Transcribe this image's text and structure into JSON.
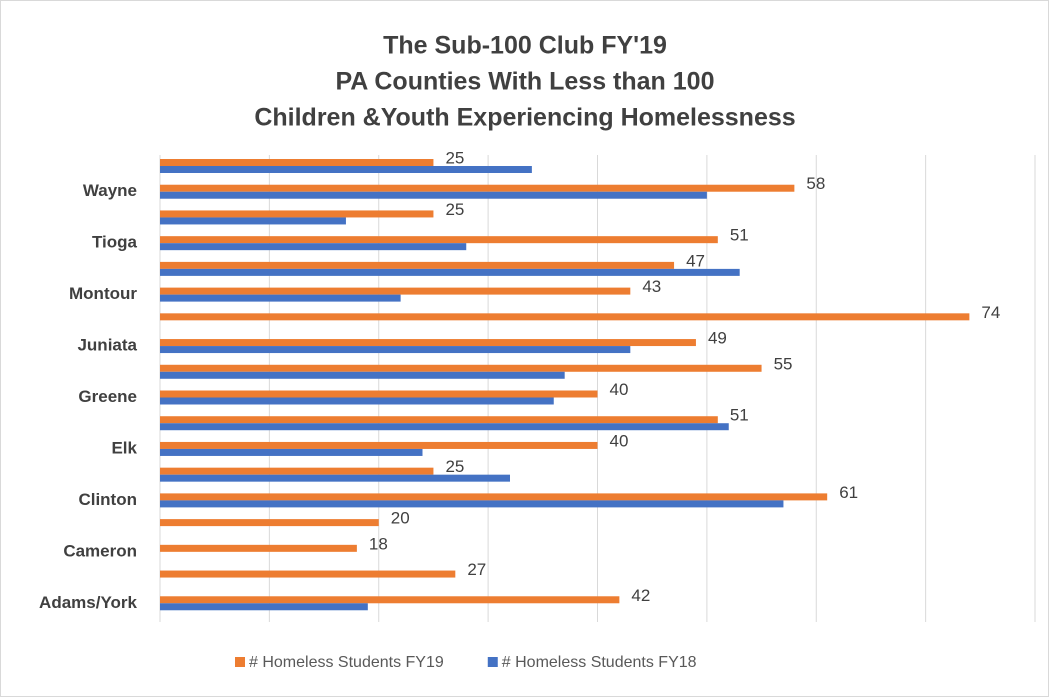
{
  "chart_data": {
    "type": "barh",
    "title": [
      "The Sub-100 Club FY'19",
      "PA Counties With Less than 100",
      "Children &Youth Experiencing Homelessness"
    ],
    "categories": [
      null,
      "Wayne",
      null,
      "Tioga",
      null,
      "Montour",
      null,
      "Juniata",
      null,
      "Greene",
      null,
      "Elk",
      null,
      "Clinton",
      null,
      "Cameron",
      null,
      "Adams/York"
    ],
    "series": [
      {
        "name": "# Homeless Students FY19",
        "color": "#ed7d31",
        "values": [
          25,
          58,
          25,
          51,
          47,
          43,
          74,
          49,
          55,
          40,
          51,
          40,
          25,
          61,
          20,
          18,
          27,
          42
        ],
        "data_labels": true
      },
      {
        "name": "# Homeless Students FY18",
        "color": "#4472c4",
        "values": [
          34,
          50,
          17,
          28,
          53,
          22,
          null,
          43,
          37,
          36,
          52,
          24,
          32,
          57,
          null,
          null,
          null,
          19
        ],
        "data_labels": false
      }
    ],
    "xlim": [
      0,
      80
    ],
    "xticks": [
      0,
      10,
      20,
      30,
      40,
      50,
      60,
      70,
      80
    ],
    "grid": true,
    "legend": "bottom"
  }
}
